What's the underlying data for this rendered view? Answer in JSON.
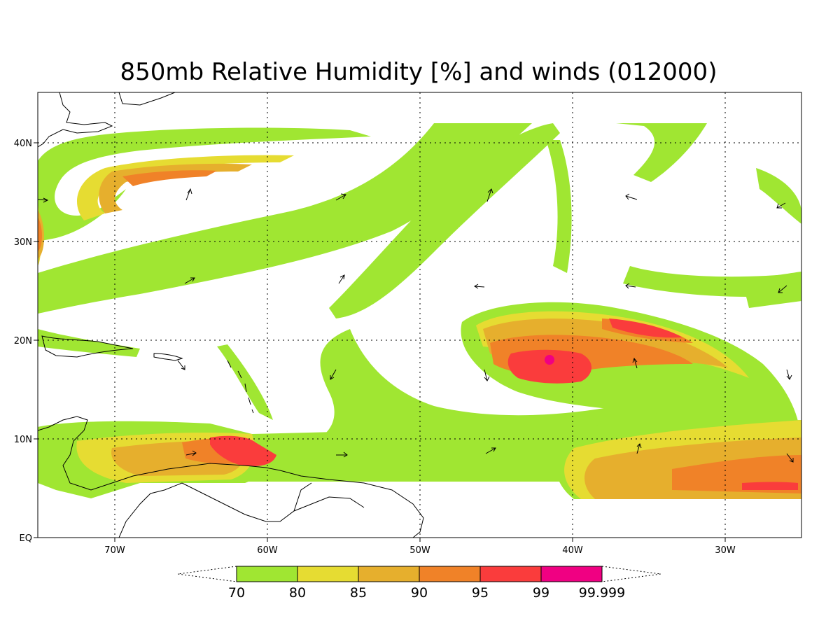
{
  "map": {
    "title": "850mb Relative Humidity [%] and winds (012000)",
    "lat_labels": [
      "EQ",
      "10N",
      "20N",
      "30N",
      "40N"
    ],
    "lon_labels": [
      "70W",
      "60W",
      "50W",
      "40W",
      "30W"
    ],
    "grid": "dotted",
    "colors": {
      "rh70": "#a0e632",
      "rh80": "#e6dc32",
      "rh85": "#e6af2d",
      "rh90": "#f08228",
      "rh95": "#fa3c3c",
      "rh99": "#f00082"
    }
  },
  "colorbar": {
    "levels": [
      "70",
      "80",
      "85",
      "90",
      "95",
      "99",
      "99.999"
    ],
    "colors": [
      "#a0e632",
      "#e6dc32",
      "#e6af2d",
      "#f08228",
      "#fa3c3c",
      "#f00082"
    ]
  }
}
